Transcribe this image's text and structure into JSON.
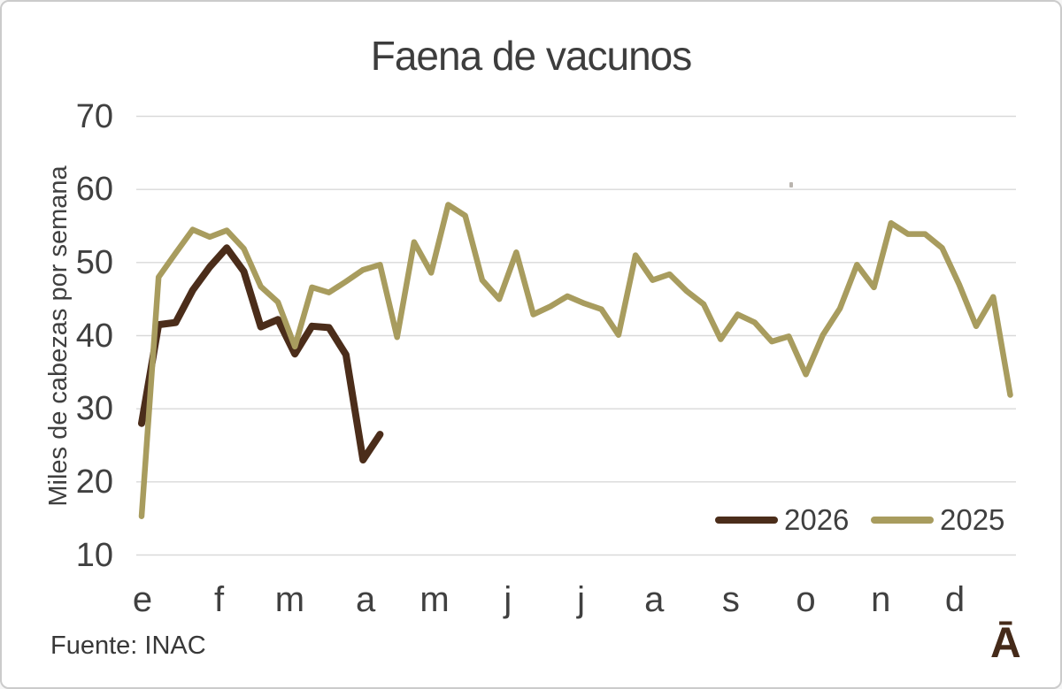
{
  "title": "Faena de vacunos",
  "y_axis_title": "Miles de cabezas por semana",
  "source": "Fuente: INAC",
  "logo": "Ā",
  "legend": {
    "items": [
      {
        "label": "2026"
      },
      {
        "label": "2025"
      }
    ]
  },
  "colors": {
    "series_2026": "#4b2d1a",
    "series_2025": "#a89c5e",
    "grid": "#d9d9d9",
    "text": "#3f3f3f",
    "tick_text": "#404040",
    "logo": "#452a19"
  },
  "chart_data": {
    "type": "line",
    "title": "Faena de vacunos",
    "xlabel": "",
    "ylabel": "Miles de cabezas por semana",
    "ylim": [
      10,
      70
    ],
    "yticks": [
      70,
      60,
      50,
      40,
      30,
      20,
      10
    ],
    "grid": "horizontal",
    "legend_position": "inside-bottom-right",
    "x_unit": "week-of-year",
    "xticks": [
      {
        "label": "e",
        "week": 1.05
      },
      {
        "label": "f",
        "week": 5.55
      },
      {
        "label": "m",
        "week": 9.7
      },
      {
        "label": "a",
        "week": 14.15
      },
      {
        "label": "m",
        "week": 18.2
      },
      {
        "label": "j",
        "week": 22.5
      },
      {
        "label": "j",
        "week": 26.8
      },
      {
        "label": "a",
        "week": 31.1
      },
      {
        "label": "s",
        "week": 35.6
      },
      {
        "label": "o",
        "week": 40.0
      },
      {
        "label": "n",
        "week": 44.4
      },
      {
        "label": "d",
        "week": 48.75
      }
    ],
    "series": [
      {
        "name": "2026",
        "color": "#4b2d1a",
        "stroke_width": 8,
        "start_week": 1,
        "values": [
          28,
          41.5,
          41.8,
          46.2,
          49.4,
          52,
          48.8,
          41.2,
          42.2,
          37.5,
          41.3,
          41.1,
          37.4,
          23,
          26.5
        ]
      },
      {
        "name": "2025",
        "color": "#a89c5e",
        "stroke_width": 6.5,
        "start_week": 1,
        "values": [
          15.3,
          48,
          51.3,
          54.5,
          53.5,
          54.4,
          51.9,
          46.7,
          44.6,
          38.5,
          46.6,
          45.9,
          47.4,
          49,
          49.7,
          39.8,
          52.8,
          48.6,
          57.9,
          56.4,
          47.6,
          45,
          51.4,
          42.9,
          44,
          45.4,
          44.4,
          43.6,
          40.1,
          51,
          47.6,
          48.4,
          46.1,
          44.3,
          39.5,
          42.9,
          41.8,
          39.2,
          39.9,
          34.7,
          40.1,
          43.7,
          49.7,
          46.6,
          55.4,
          53.9,
          53.9,
          52,
          47,
          41.3,
          45.3,
          31.9
        ]
      }
    ]
  }
}
